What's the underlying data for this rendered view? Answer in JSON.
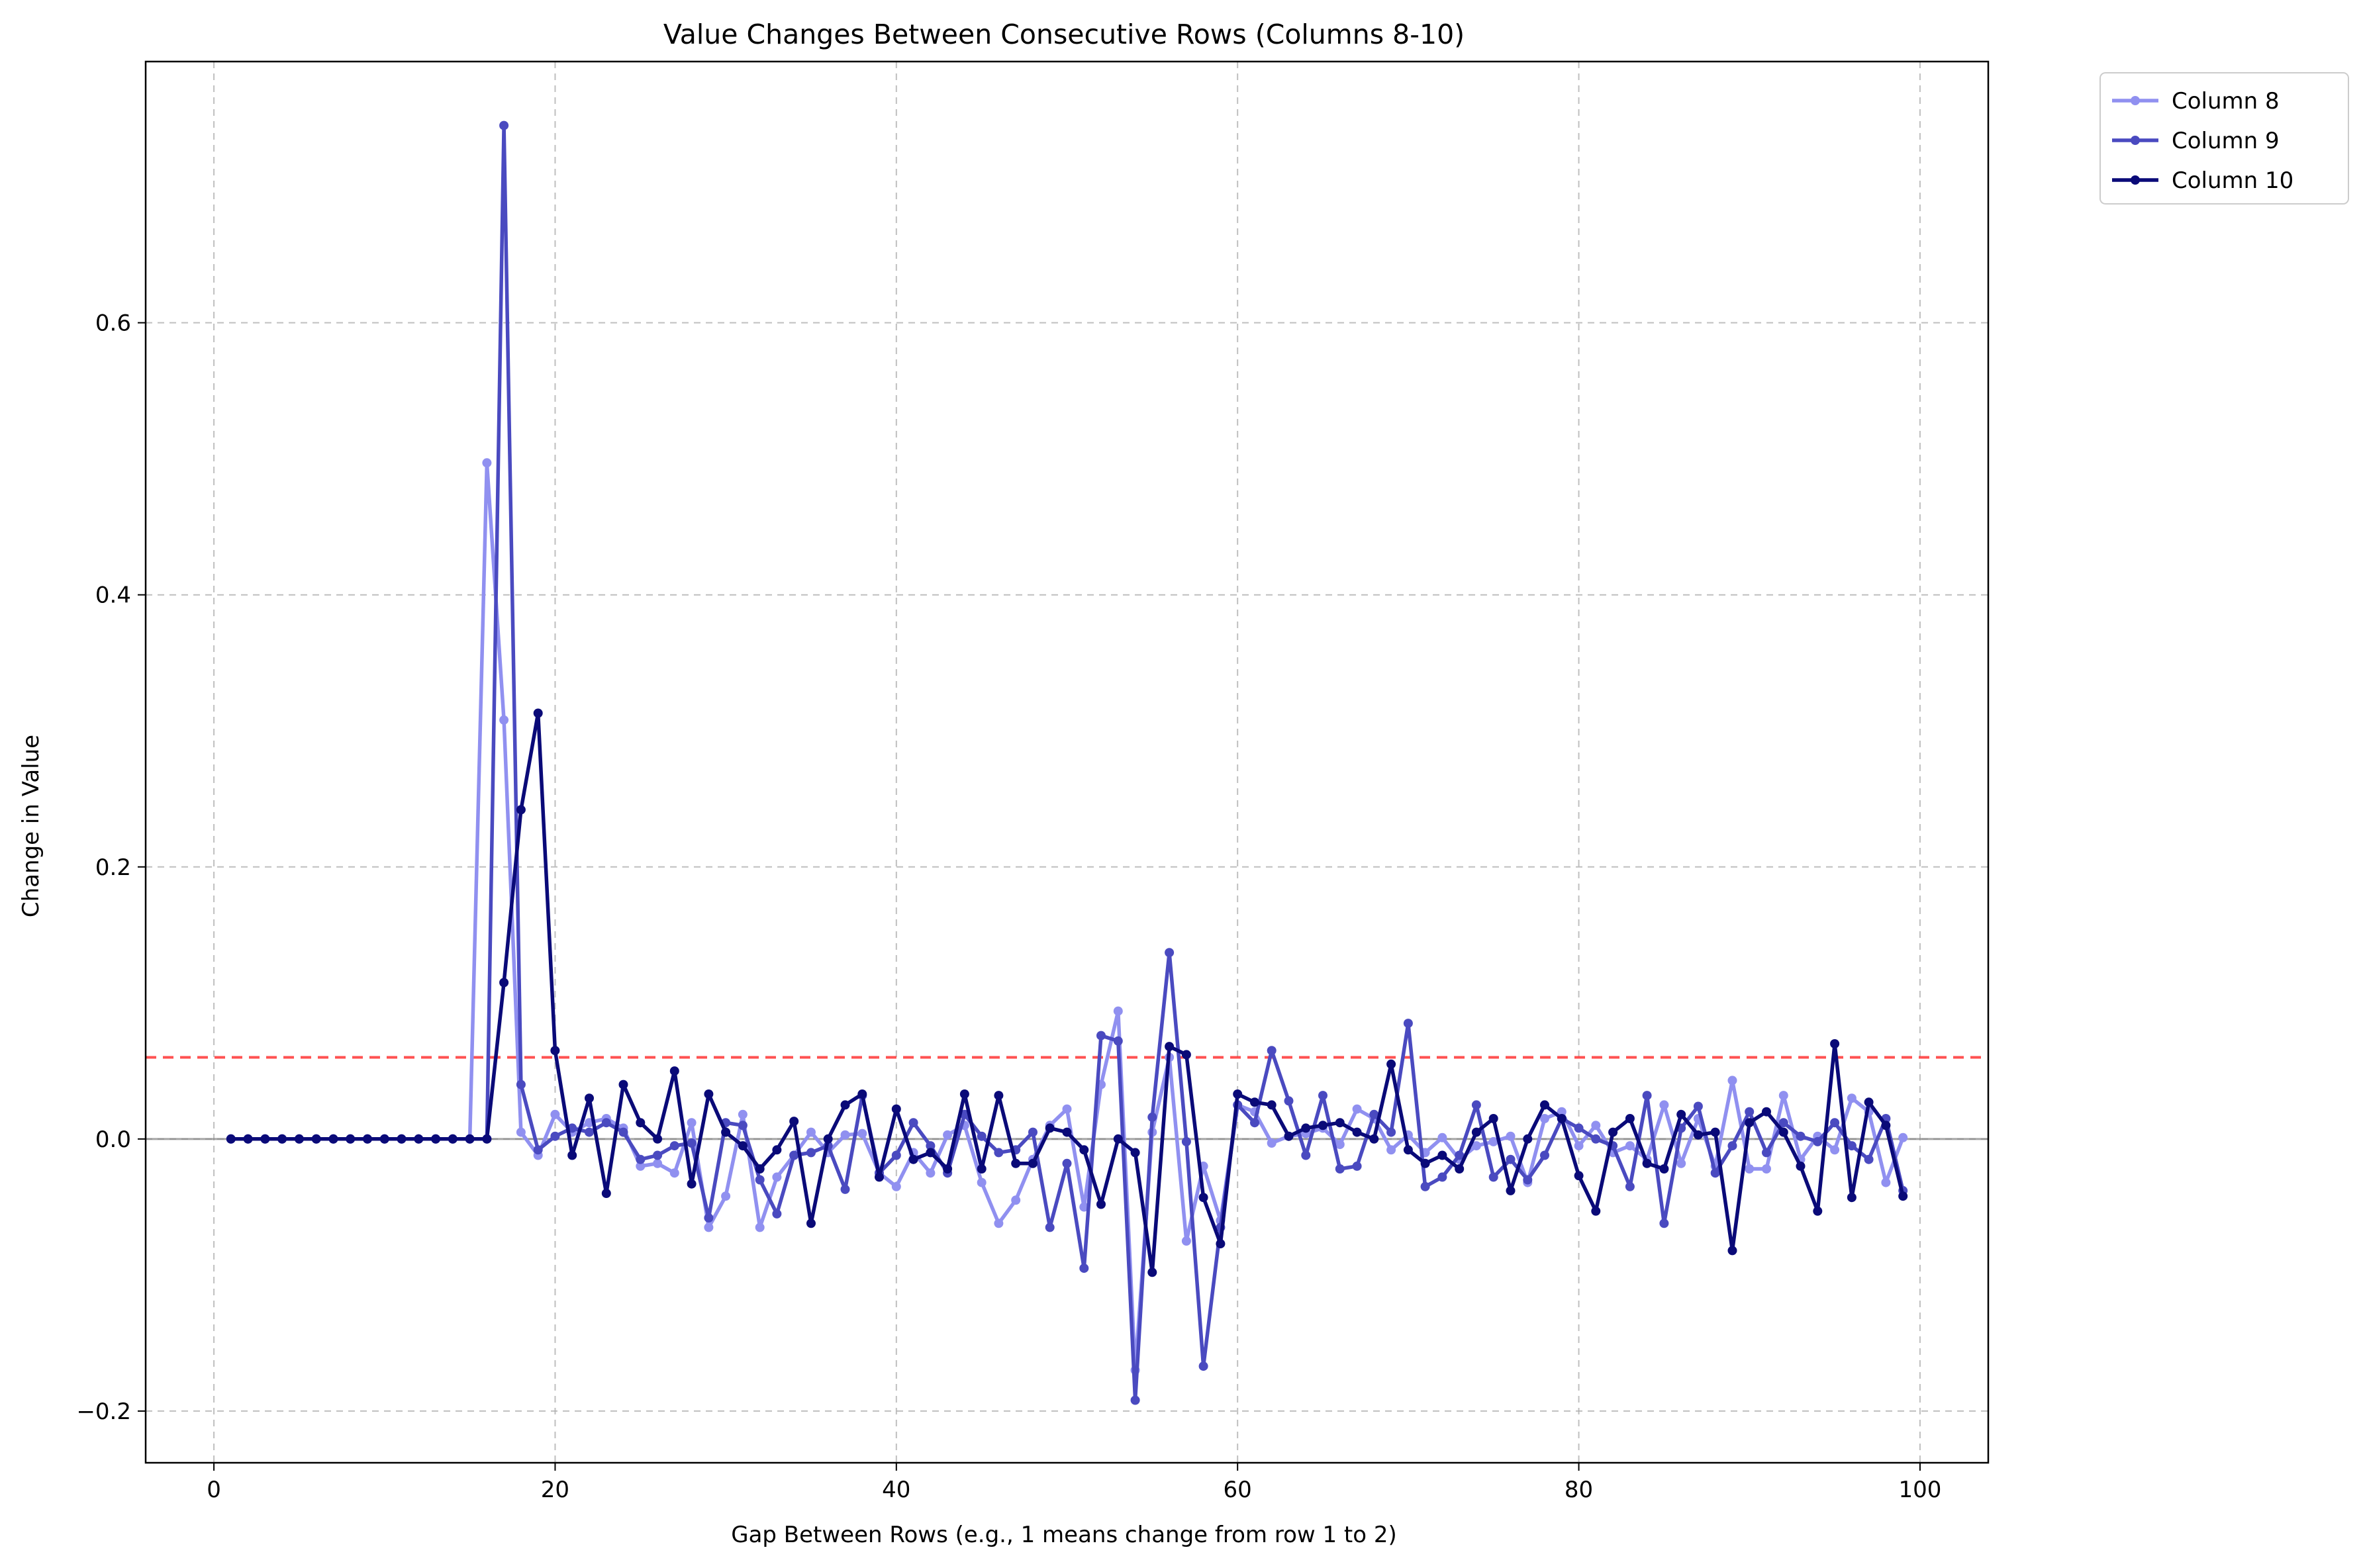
{
  "chart_data": {
    "type": "line",
    "title": "Value Changes Between Consecutive Rows (Columns 8-10)",
    "xlabel": "Gap Between Rows (e.g., 1 means change from row 1 to 2)",
    "ylabel": "Change in Value",
    "xlim": [
      -4,
      104
    ],
    "ylim": [
      -0.238,
      0.792
    ],
    "xticks": [
      0,
      20,
      40,
      60,
      80,
      100
    ],
    "xtick_labels": [
      "0",
      "20",
      "40",
      "60",
      "80",
      "100"
    ],
    "yticks": [
      -0.2,
      0.0,
      0.2,
      0.4,
      0.6
    ],
    "ytick_labels": [
      "−0.2",
      "0.0",
      "0.2",
      "0.4",
      "0.6"
    ],
    "grid": true,
    "legend_position": "outside-top-right",
    "reference_lines": [
      {
        "y": 0.06,
        "color": "#ff3333",
        "style": "dashed"
      },
      {
        "y": 0.0,
        "color": "#808080",
        "style": "solid"
      }
    ],
    "x": [
      1,
      2,
      3,
      4,
      5,
      6,
      7,
      8,
      9,
      10,
      11,
      12,
      13,
      14,
      15,
      16,
      17,
      18,
      19,
      20,
      21,
      22,
      23,
      24,
      25,
      26,
      27,
      28,
      29,
      30,
      31,
      32,
      33,
      34,
      35,
      36,
      37,
      38,
      39,
      40,
      41,
      42,
      43,
      44,
      45,
      46,
      47,
      48,
      49,
      50,
      51,
      52,
      53,
      54,
      55,
      56,
      57,
      58,
      59,
      60,
      61,
      62,
      63,
      64,
      65,
      66,
      67,
      68,
      69,
      70,
      71,
      72,
      73,
      74,
      75,
      76,
      77,
      78,
      79,
      80,
      81,
      82,
      83,
      84,
      85,
      86,
      87,
      88,
      89,
      90,
      91,
      92,
      93,
      94,
      95,
      96,
      97,
      98,
      99
    ],
    "series": [
      {
        "name": "Column 8",
        "color": "#9090f0",
        "values": [
          0,
          0,
          0,
          0,
          0,
          0,
          0,
          0,
          0,
          0,
          0,
          0,
          0,
          0,
          0,
          0.497,
          0.308,
          0.005,
          -0.012,
          0.018,
          0.005,
          0.012,
          0.015,
          0.008,
          -0.02,
          -0.018,
          -0.025,
          0.012,
          -0.065,
          -0.042,
          0.018,
          -0.065,
          -0.028,
          -0.012,
          0.005,
          -0.01,
          0.003,
          0.004,
          -0.025,
          -0.035,
          -0.01,
          -0.025,
          0.003,
          0.01,
          -0.032,
          -0.062,
          -0.045,
          -0.015,
          0.01,
          0.022,
          -0.05,
          0.04,
          0.094,
          -0.17,
          0.005,
          0.06,
          -0.075,
          -0.02,
          -0.06,
          0.025,
          0.02,
          -0.003,
          0.002,
          0.004,
          0.008,
          -0.004,
          0.022,
          0.015,
          -0.008,
          0.003,
          -0.01,
          0.001,
          -0.015,
          -0.005,
          -0.002,
          0.002,
          -0.032,
          0.015,
          0.02,
          -0.005,
          0.01,
          -0.01,
          -0.005,
          -0.015,
          0.025,
          -0.018,
          0.015,
          -0.02,
          0.043,
          -0.022,
          -0.022,
          0.032,
          -0.015,
          0.002,
          -0.008,
          0.03,
          0.02,
          -0.032,
          0.001
        ]
      },
      {
        "name": "Column 9",
        "color": "#4a4ac0",
        "values": [
          0,
          0,
          0,
          0,
          0,
          0,
          0,
          0,
          0,
          0,
          0,
          0,
          0,
          0,
          0,
          0,
          0.745,
          0.04,
          -0.008,
          0.002,
          0.008,
          0.005,
          0.012,
          0.005,
          -0.015,
          -0.012,
          -0.005,
          -0.003,
          -0.058,
          0.012,
          0.01,
          -0.03,
          -0.055,
          -0.012,
          -0.01,
          -0.005,
          -0.037,
          0.032,
          -0.025,
          -0.012,
          0.012,
          -0.005,
          -0.025,
          0.018,
          0.002,
          -0.01,
          -0.008,
          0.005,
          -0.065,
          -0.018,
          -0.095,
          0.076,
          0.072,
          -0.192,
          0.016,
          0.137,
          -0.002,
          -0.167,
          -0.065,
          0.025,
          0.012,
          0.065,
          0.028,
          -0.012,
          0.032,
          -0.022,
          -0.02,
          0.018,
          0.005,
          0.085,
          -0.035,
          -0.028,
          -0.012,
          0.025,
          -0.028,
          -0.015,
          -0.03,
          -0.012,
          0.015,
          0.008,
          0,
          -0.005,
          -0.035,
          0.032,
          -0.062,
          0.008,
          0.024,
          -0.025,
          -0.005,
          0.02,
          -0.01,
          0.012,
          0.002,
          -0.002,
          0.012,
          -0.005,
          -0.015,
          0.015,
          -0.038
        ]
      },
      {
        "name": "Column 10",
        "color": "#0a0a78",
        "values": [
          0,
          0,
          0,
          0,
          0,
          0,
          0,
          0,
          0,
          0,
          0,
          0,
          0,
          0,
          0,
          0,
          0.115,
          0.242,
          0.313,
          0.065,
          -0.012,
          0.03,
          -0.04,
          0.04,
          0.012,
          0,
          0.05,
          -0.033,
          0.033,
          0.005,
          -0.005,
          -0.022,
          -0.008,
          0.013,
          -0.062,
          0,
          0.025,
          0.033,
          -0.028,
          0.022,
          -0.015,
          -0.01,
          -0.022,
          0.033,
          -0.022,
          0.032,
          -0.018,
          -0.018,
          0.008,
          0.005,
          -0.008,
          -0.048,
          0,
          -0.01,
          -0.098,
          0.068,
          0.062,
          -0.043,
          -0.077,
          0.033,
          0.027,
          0.025,
          0.002,
          0.008,
          0.01,
          0.012,
          0.005,
          0,
          0.055,
          -0.008,
          -0.018,
          -0.012,
          -0.022,
          0.005,
          0.015,
          -0.038,
          0,
          0.025,
          0.015,
          -0.027,
          -0.053,
          0.005,
          0.015,
          -0.018,
          -0.022,
          0.018,
          0.003,
          0.005,
          -0.082,
          0.012,
          0.02,
          0.005,
          -0.02,
          -0.053,
          0.07,
          -0.043,
          0.027,
          0.01,
          -0.042
        ]
      }
    ]
  }
}
